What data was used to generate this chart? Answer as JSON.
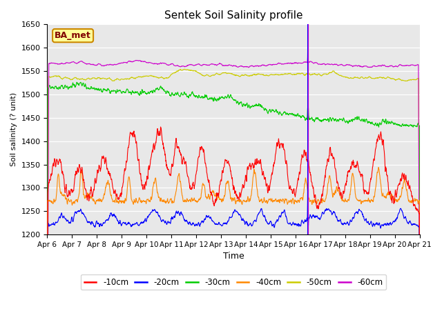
{
  "title": "Sentek Soil Salinity profile",
  "ylabel": "Soil salinity (? unit)",
  "xlabel": "Time",
  "annotation_label": "BA_met",
  "ylim": [
    1200,
    1650
  ],
  "tick_labels": [
    "Apr 6",
    "Apr 7",
    "Apr 8",
    "Apr 9",
    "Apr 10",
    "Apr 11",
    "Apr 12",
    "Apr 13",
    "Apr 14",
    "Apr 15",
    "Apr 16",
    "Apr 17",
    "Apr 18",
    "Apr 19",
    "Apr 20",
    "Apr 21"
  ],
  "yticks": [
    1200,
    1250,
    1300,
    1350,
    1400,
    1450,
    1500,
    1550,
    1600,
    1650
  ],
  "colors": {
    "-10cm": "#ff0000",
    "-20cm": "#0000ff",
    "-30cm": "#00cc00",
    "-40cm": "#ff8800",
    "-50cm": "#cccc00",
    "-60cm": "#cc00cc"
  },
  "bg_color": "#e8e8e8",
  "seed": 12345
}
